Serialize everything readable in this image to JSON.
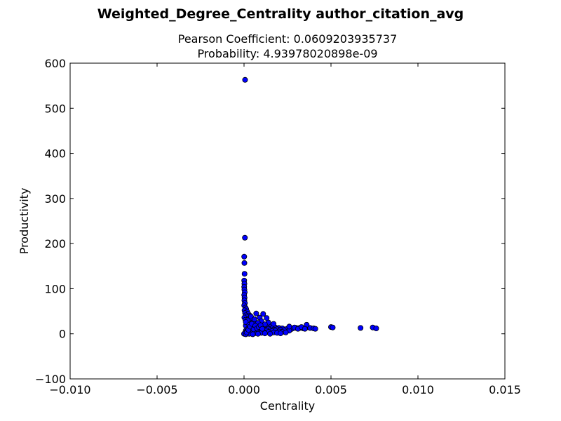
{
  "chart_data": {
    "type": "scatter",
    "title": "Weighted_Degree_Centrality author_citation_avg",
    "subtitle_lines": [
      "Pearson Coefficient: 0.0609203935737",
      "Probability: 4.93978020898e-09"
    ],
    "xlabel": "Centrality",
    "ylabel": "Productivity",
    "xlim": [
      -0.01,
      0.015
    ],
    "ylim": [
      -100,
      600
    ],
    "xticks": [
      -0.01,
      -0.005,
      0.0,
      0.005,
      0.01,
      0.015
    ],
    "xtick_labels": [
      "−0.010",
      "−0.005",
      "0.000",
      "0.005",
      "0.010",
      "0.015"
    ],
    "yticks": [
      -100,
      0,
      100,
      200,
      300,
      400,
      500,
      600
    ],
    "ytick_labels": [
      "−100",
      "0",
      "100",
      "200",
      "300",
      "400",
      "500",
      "600"
    ],
    "grid": false,
    "marker_color": "#0000ff",
    "marker_edge": "#000000",
    "points": [
      [
        6e-05,
        563
      ],
      [
        5e-05,
        213
      ],
      [
        1e-05,
        171
      ],
      [
        2e-05,
        157
      ],
      [
        3e-05,
        133
      ],
      [
        1e-05,
        118
      ],
      [
        2e-05,
        111
      ],
      [
        1e-05,
        104
      ],
      [
        2e-05,
        98
      ],
      [
        4e-05,
        92
      ],
      [
        1e-05,
        86
      ],
      [
        3e-05,
        80
      ],
      [
        2e-05,
        74
      ],
      [
        5e-05,
        68
      ],
      [
        1e-05,
        63
      ],
      [
        8e-05,
        58
      ],
      [
        0.00012,
        55
      ],
      [
        3e-05,
        52
      ],
      [
        0.00018,
        49
      ],
      [
        6e-05,
        46
      ],
      [
        0.00025,
        44
      ],
      [
        0.0001,
        41
      ],
      [
        0.00035,
        40
      ],
      [
        0.00015,
        38
      ],
      [
        2e-05,
        36
      ],
      [
        0.0003,
        34
      ],
      [
        0.00045,
        33
      ],
      [
        8e-05,
        31
      ],
      [
        0.0002,
        29
      ],
      [
        0.0004,
        28
      ],
      [
        0.0006,
        27
      ],
      [
        0.00012,
        26
      ],
      [
        0.0005,
        25
      ],
      [
        0.0003,
        24
      ],
      [
        0.0007,
        23
      ],
      [
        0.0002,
        22
      ],
      [
        0.0009,
        21
      ],
      [
        0.0004,
        20
      ],
      [
        0.0008,
        19
      ],
      [
        0.0001,
        18
      ],
      [
        0.0012,
        18
      ],
      [
        0.0006,
        17
      ],
      [
        0.001,
        16
      ],
      [
        0.0015,
        16
      ],
      [
        0.0003,
        15
      ],
      [
        0.0013,
        15
      ],
      [
        0.0018,
        14
      ],
      [
        0.0007,
        14
      ],
      [
        0.0011,
        13
      ],
      [
        0.002,
        13
      ],
      [
        0.0005,
        12
      ],
      [
        0.0016,
        12
      ],
      [
        0.0022,
        12
      ],
      [
        0.0009,
        11
      ],
      [
        0.0014,
        11
      ],
      [
        0.0025,
        11
      ],
      [
        0.0002,
        10
      ],
      [
        0.0019,
        10
      ],
      [
        0.0024,
        10
      ],
      [
        0.0027,
        10
      ],
      [
        0.0008,
        9
      ],
      [
        0.0012,
        9
      ],
      [
        0.0017,
        9
      ],
      [
        0.0021,
        9
      ],
      [
        0.003,
        13
      ],
      [
        0.0004,
        8
      ],
      [
        0.001,
        8
      ],
      [
        0.0015,
        8
      ],
      [
        0.0023,
        8
      ],
      [
        0.0028,
        12
      ],
      [
        0.0001,
        7
      ],
      [
        0.0006,
        7
      ],
      [
        0.0013,
        7
      ],
      [
        0.0018,
        7
      ],
      [
        0.0032,
        13
      ],
      [
        0.0003,
        6
      ],
      [
        0.0009,
        6
      ],
      [
        0.0016,
        6
      ],
      [
        0.0026,
        7
      ],
      [
        0.0034,
        12
      ],
      [
        0.0002,
        5
      ],
      [
        0.0007,
        5
      ],
      [
        0.0011,
        5
      ],
      [
        0.002,
        5
      ],
      [
        0.0036,
        14
      ],
      [
        0.0001,
        4
      ],
      [
        0.0005,
        4
      ],
      [
        0.0014,
        4
      ],
      [
        0.0022,
        4
      ],
      [
        0.0038,
        13
      ],
      [
        0.0003,
        3
      ],
      [
        0.0008,
        3
      ],
      [
        0.0017,
        3
      ],
      [
        0.0024,
        3
      ],
      [
        0.0036,
        20
      ],
      [
        0.0001,
        2
      ],
      [
        0.0004,
        2
      ],
      [
        0.001,
        2
      ],
      [
        0.0019,
        2
      ],
      [
        0.004,
        12
      ],
      [
        0.0002,
        1
      ],
      [
        0.0006,
        1
      ],
      [
        0.0012,
        1
      ],
      [
        0.0021,
        1
      ],
      [
        0.0041,
        11
      ],
      [
        0.0,
        0
      ],
      [
        0.0003,
        0
      ],
      [
        0.0008,
        0
      ],
      [
        0.0015,
        0
      ],
      [
        0.005,
        15
      ],
      [
        0.0001,
        -1
      ],
      [
        0.0005,
        -1
      ],
      [
        0.0011,
        44
      ],
      [
        0.0007,
        45
      ],
      [
        0.0051,
        14
      ],
      [
        0.0004,
        38
      ],
      [
        0.0009,
        36
      ],
      [
        0.0013,
        35
      ],
      [
        0.0017,
        22
      ],
      [
        0.0067,
        13
      ],
      [
        0.0002,
        30
      ],
      [
        0.0006,
        32
      ],
      [
        0.001,
        28
      ],
      [
        0.0014,
        25
      ],
      [
        0.0074,
        14
      ],
      [
        0.0001,
        26
      ],
      [
        0.0003,
        20
      ],
      [
        0.0008,
        24
      ],
      [
        0.0012,
        21
      ],
      [
        0.0076,
        12
      ],
      [
        0.0026,
        16
      ],
      [
        0.0029,
        14
      ],
      [
        0.0031,
        11
      ],
      [
        0.0033,
        15
      ],
      [
        0.0035,
        11
      ],
      [
        0.00015,
        3
      ],
      [
        0.00025,
        9
      ],
      [
        0.00035,
        16
      ],
      [
        0.00045,
        22
      ],
      [
        0.00055,
        10
      ],
      [
        0.00065,
        18
      ],
      [
        0.00075,
        12
      ],
      [
        0.00085,
        15
      ],
      [
        0.00095,
        19
      ],
      [
        0.00105,
        11
      ]
    ]
  }
}
